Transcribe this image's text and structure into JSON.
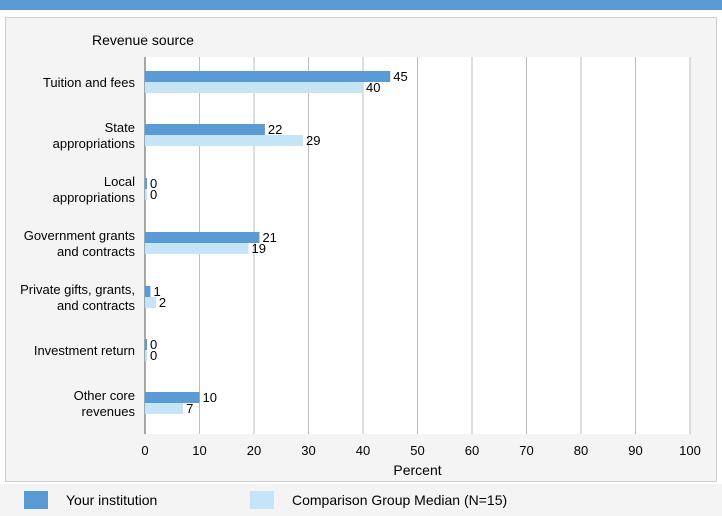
{
  "colors": {
    "top_bar": "#5b9bd5",
    "institution": "#5b9bd5",
    "comparison": "#c6e4f8",
    "grid": "#bdbdbd"
  },
  "chart_data": {
    "type": "bar",
    "orientation": "horizontal",
    "category_axis_title": "Revenue source",
    "xlabel": "Percent",
    "xlim": [
      0,
      100
    ],
    "xticks": [
      0,
      10,
      20,
      30,
      40,
      50,
      60,
      70,
      80,
      90,
      100
    ],
    "grid": true,
    "legend_position": "bottom",
    "categories": [
      [
        "Tuition and fees"
      ],
      [
        "State",
        "appropriations"
      ],
      [
        "Local",
        "appropriations"
      ],
      [
        "Government grants",
        "and contracts"
      ],
      [
        "Private gifts, grants,",
        "and contracts"
      ],
      [
        "Investment return"
      ],
      [
        "Other core",
        "revenues"
      ]
    ],
    "series": [
      {
        "name": "Your institution",
        "values": [
          45,
          22,
          0,
          21,
          1,
          0,
          10
        ]
      },
      {
        "name": "Comparison Group Median (N=15)",
        "values": [
          40,
          29,
          0,
          19,
          2,
          0,
          7
        ]
      }
    ]
  },
  "legend": {
    "institution_label": "Your institution",
    "comparison_label": "Comparison Group Median (N=15)"
  }
}
